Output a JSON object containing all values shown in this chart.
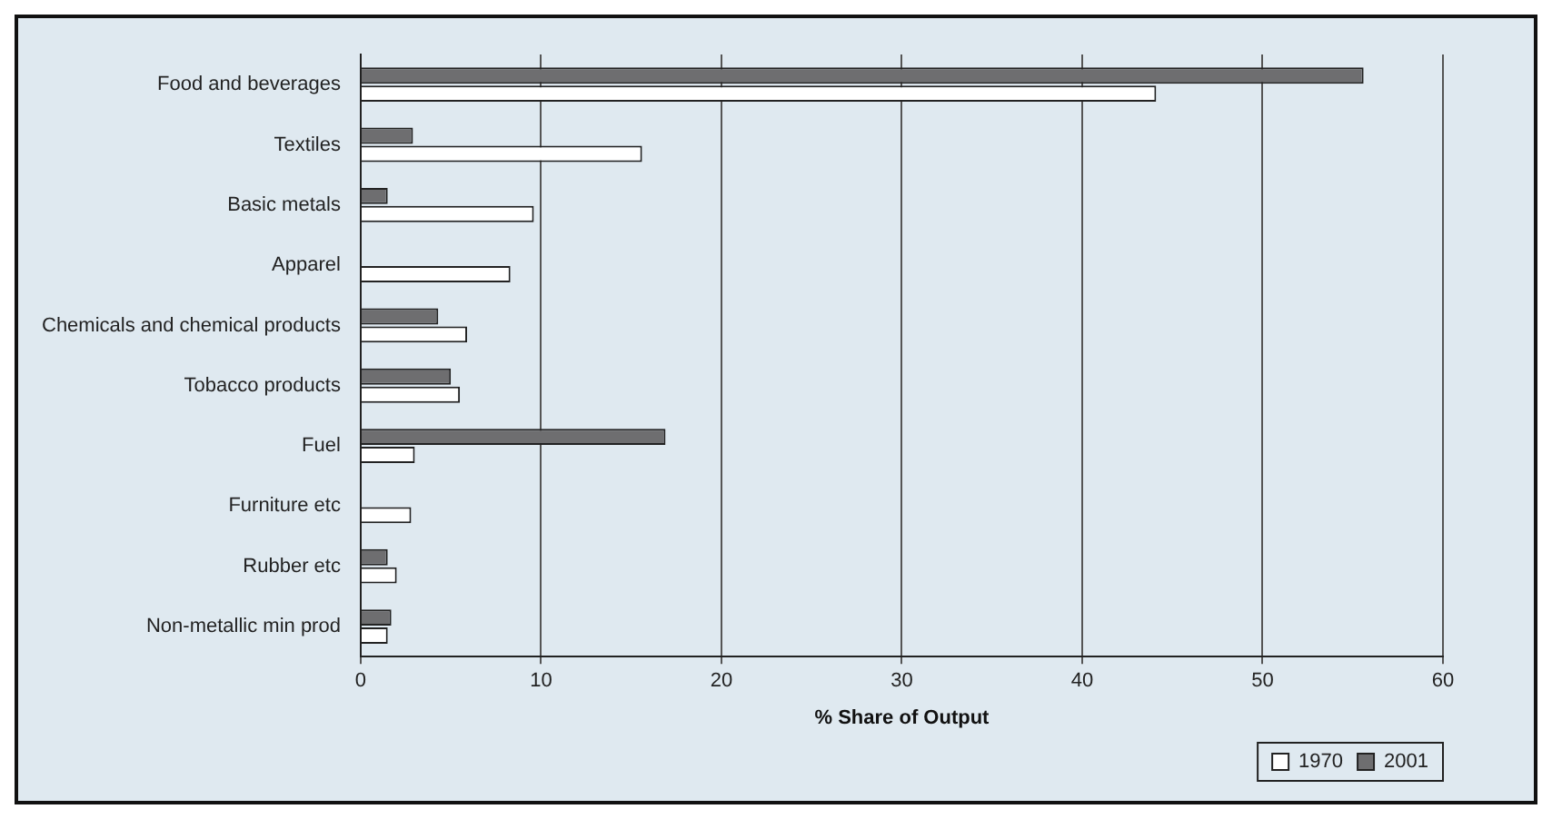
{
  "chart_data": {
    "type": "bar",
    "orientation": "horizontal",
    "xlabel": "% Share of Output",
    "categories": [
      "Food and beverages",
      "Textiles",
      "Basic metals",
      "Apparel",
      "Chemicals and chemical products",
      "Tobacco products",
      "Fuel",
      "Furniture etc",
      "Rubber etc",
      "Non-metallic min prod"
    ],
    "series": [
      {
        "name": "1970",
        "color": "#ffffff",
        "values": [
          44.1,
          15.6,
          9.6,
          8.3,
          5.9,
          5.5,
          3.0,
          2.8,
          2.0,
          1.5
        ]
      },
      {
        "name": "2001",
        "color": "#6e6e70",
        "values": [
          55.6,
          2.9,
          1.5,
          0,
          4.3,
          5.0,
          16.9,
          0,
          1.5,
          1.7
        ]
      }
    ],
    "xlim": [
      0,
      60
    ],
    "xticks": [
      0,
      10,
      20,
      30,
      40,
      50,
      60
    ],
    "grid": "x",
    "legend": "bottom right"
  }
}
